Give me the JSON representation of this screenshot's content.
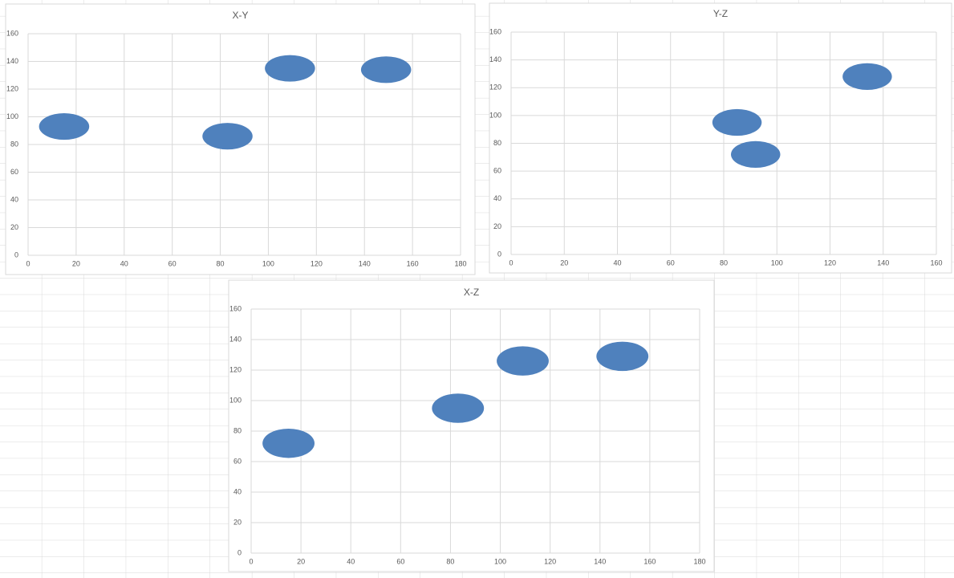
{
  "chart_data": [
    {
      "type": "scatter",
      "title": "X-Y",
      "x": [
        15,
        83,
        109,
        149
      ],
      "y": [
        93,
        86,
        135,
        134
      ],
      "color": "#4f81bd",
      "xlim": [
        0,
        180
      ],
      "xticks": [
        0,
        20,
        40,
        60,
        80,
        100,
        120,
        140,
        160,
        180
      ],
      "ylim": [
        0,
        160
      ],
      "yticks": [
        0,
        20,
        40,
        60,
        80,
        100,
        120,
        140,
        160
      ],
      "grid": true
    },
    {
      "type": "scatter",
      "title": "Y-Z",
      "x": [
        85,
        92,
        134
      ],
      "y": [
        95,
        72,
        128
      ],
      "color": "#4f81bd",
      "xlim": [
        0,
        160
      ],
      "xticks": [
        0,
        20,
        40,
        60,
        80,
        100,
        120,
        140,
        160
      ],
      "ylim": [
        0,
        160
      ],
      "yticks": [
        0,
        20,
        40,
        60,
        80,
        100,
        120,
        140,
        160
      ],
      "grid": true
    },
    {
      "type": "scatter",
      "title": "X-Z",
      "x": [
        15,
        83,
        109,
        149
      ],
      "y": [
        72,
        95,
        126,
        129
      ],
      "color": "#4f81bd",
      "xlim": [
        0,
        180
      ],
      "xticks": [
        0,
        20,
        40,
        60,
        80,
        100,
        120,
        140,
        160,
        180
      ],
      "ylim": [
        0,
        160
      ],
      "yticks": [
        0,
        20,
        40,
        60,
        80,
        100,
        120,
        140,
        160
      ],
      "grid": true
    }
  ]
}
